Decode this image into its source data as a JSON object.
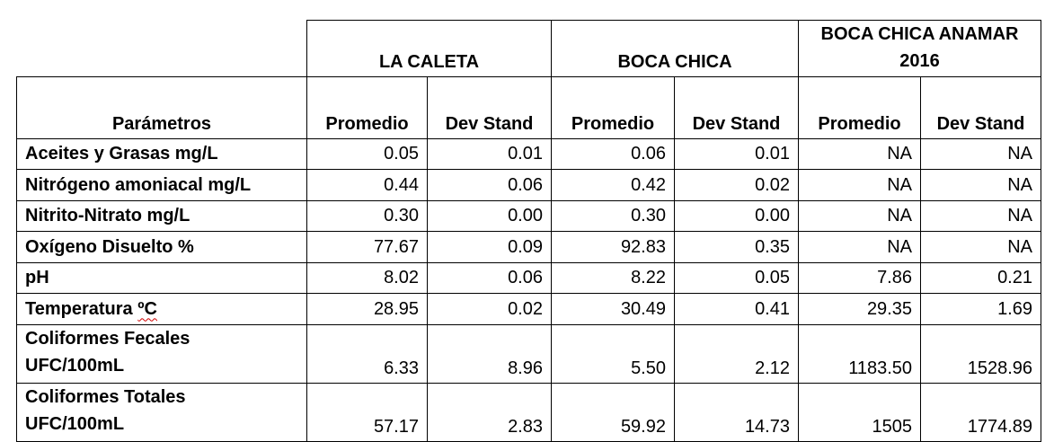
{
  "table": {
    "sites": [
      {
        "name": "LA CALETA"
      },
      {
        "name": "BOCA CHICA"
      },
      {
        "name": "BOCA CHICA ANAMAR 2016"
      }
    ],
    "param_header": "Parámetros",
    "sub_headers": [
      "Promedio",
      "Dev Stand",
      "Promedio",
      "Dev Stand",
      "Promedio",
      "Dev Stand"
    ],
    "rows": [
      {
        "label_main": "Aceites y Grasas mg/L",
        "label_mark": "",
        "label_line2": "",
        "values": [
          "0.05",
          "0.01",
          "0.06",
          "0.01",
          "NA",
          "NA"
        ]
      },
      {
        "label_main": "Nitrógeno amoniacal mg/L",
        "label_mark": "",
        "label_line2": "",
        "values": [
          "0.44",
          "0.06",
          "0.42",
          "0.02",
          "NA",
          "NA"
        ]
      },
      {
        "label_main": "Nitrito-Nitrato mg/L",
        "label_mark": "",
        "label_line2": "",
        "values": [
          "0.30",
          "0.00",
          "0.30",
          "0.00",
          "NA",
          "NA"
        ]
      },
      {
        "label_main": "Oxígeno Disuelto %",
        "label_mark": "",
        "label_line2": "",
        "values": [
          "77.67",
          "0.09",
          "92.83",
          "0.35",
          "NA",
          "NA"
        ]
      },
      {
        "label_main": "pH",
        "label_mark": "",
        "label_line2": "",
        "values": [
          "8.02",
          "0.06",
          "8.22",
          "0.05",
          "7.86",
          "0.21"
        ]
      },
      {
        "label_main": "Temperatura ",
        "label_mark": "ºC",
        "label_line2": "",
        "values": [
          "28.95",
          "0.02",
          "30.49",
          "0.41",
          "29.35",
          "1.69"
        ]
      },
      {
        "label_main": "Coliformes Fecales",
        "label_mark": "",
        "label_line2": "UFC/100mL",
        "values": [
          "6.33",
          "8.96",
          "5.50",
          "2.12",
          "1183.50",
          "1528.96"
        ]
      },
      {
        "label_main": "Coliformes Totales",
        "label_mark": "",
        "label_line2": "UFC/100mL",
        "values": [
          "57.17",
          "2.83",
          "59.92",
          "14.73",
          "1505",
          "1774.89"
        ]
      }
    ]
  }
}
